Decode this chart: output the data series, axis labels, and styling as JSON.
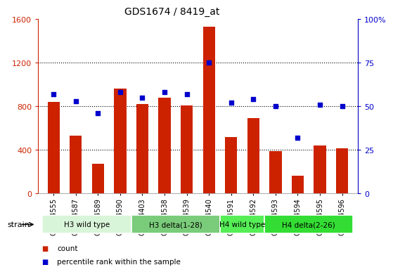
{
  "title": "GDS1674 / 8419_at",
  "samples": [
    "GSM94555",
    "GSM94587",
    "GSM94589",
    "GSM94590",
    "GSM94403",
    "GSM94538",
    "GSM94539",
    "GSM94540",
    "GSM94591",
    "GSM94592",
    "GSM94593",
    "GSM94594",
    "GSM94595",
    "GSM94596"
  ],
  "counts": [
    840,
    530,
    270,
    960,
    820,
    880,
    810,
    1530,
    520,
    690,
    390,
    165,
    440,
    415
  ],
  "percentiles": [
    57,
    53,
    46,
    58,
    55,
    58,
    57,
    75,
    52,
    54,
    50,
    32,
    51,
    50
  ],
  "groups": [
    {
      "label": "H3 wild type",
      "start": 0,
      "end": 3,
      "color": "#d9f5d9"
    },
    {
      "label": "H3 delta(1-28)",
      "start": 4,
      "end": 7,
      "color": "#7acc7a"
    },
    {
      "label": "H4 wild type",
      "start": 8,
      "end": 9,
      "color": "#55ee55"
    },
    {
      "label": "H4 delta(2-26)",
      "start": 10,
      "end": 13,
      "color": "#33dd33"
    }
  ],
  "bar_color": "#cc2200",
  "scatter_color": "#0000cc",
  "left_ylim": [
    0,
    1600
  ],
  "left_yticks": [
    0,
    400,
    800,
    1200,
    1600
  ],
  "right_ylim": [
    0,
    100
  ],
  "right_yticks": [
    0,
    25,
    50,
    75,
    100
  ],
  "plot_bg": "#ffffff"
}
